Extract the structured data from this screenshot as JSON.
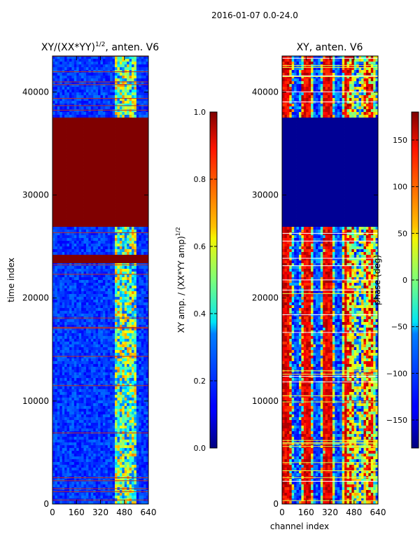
{
  "figure": {
    "suptitle": "2016-01-07 0.0-24.0"
  },
  "chart_data": [
    {
      "type": "heatmap",
      "title": "XY/(XX*YY)^{1/2}, anten. V6",
      "title_main": "XY/(XX*YY)",
      "title_sup": "1/2",
      "title_tail": ", anten. V6",
      "xlabel": "",
      "ylabel": "time index",
      "xlim": [
        0,
        640
      ],
      "ylim": [
        0,
        43500
      ],
      "xticks": [
        "0",
        "160",
        "320",
        "480",
        "640"
      ],
      "yticks": [
        "0",
        "10000",
        "20000",
        "30000",
        "40000"
      ],
      "colorbar": {
        "label": "XY amp. / (XX*YY amp)",
        "label_sup": "1/2",
        "range": [
          0.0,
          1.0
        ],
        "ticks": [
          "0.0",
          "0.2",
          "0.4",
          "0.6",
          "0.8",
          "1.0"
        ]
      },
      "saturated_band": {
        "from": 27000,
        "to": 37500,
        "value": 1.0
      },
      "saturated_band_2": {
        "from": 23500,
        "to": 24200,
        "value": 1.0
      },
      "active_channels": [
        410,
        560
      ],
      "background_value": 0.12
    },
    {
      "type": "heatmap",
      "title": "XY, anten. V6",
      "xlabel": "channel index",
      "ylabel": "",
      "xlim": [
        0,
        640
      ],
      "ylim": [
        0,
        43500
      ],
      "xticks": [
        "0",
        "160",
        "320",
        "480",
        "640"
      ],
      "yticks": [
        "0",
        "10000",
        "20000",
        "30000",
        "40000"
      ],
      "colorbar": {
        "label": "phase (deg)",
        "range": [
          -180,
          180
        ],
        "ticks": [
          "-150",
          "-100",
          "-50",
          "0",
          "50",
          "100",
          "150"
        ]
      },
      "empty_band": {
        "from": 27000,
        "to": 37500,
        "value": -180
      },
      "background_value": 0
    }
  ]
}
